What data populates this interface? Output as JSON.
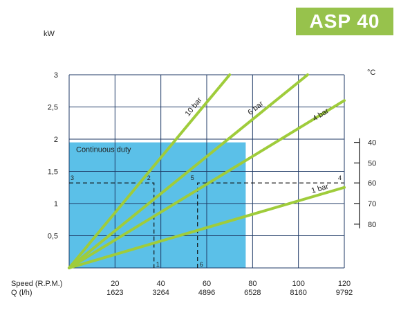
{
  "badge": "ASP 40",
  "chart_data": {
    "type": "line",
    "title": "",
    "ylabel": "kW",
    "ylim": [
      0,
      3
    ],
    "yticks": [
      "0,5",
      "1",
      "1,5",
      "2",
      "2,5",
      "3"
    ],
    "ytick_values": [
      0.5,
      1,
      1.5,
      2,
      2.5,
      3
    ],
    "xlim": [
      0,
      120
    ],
    "x_rows": [
      {
        "name": "Speed (R.P.M.)",
        "values": [
          "20",
          "40",
          "60",
          "80",
          "100",
          "120"
        ]
      },
      {
        "name": "Q (l/h)",
        "values": [
          "1623",
          "3264",
          "4896",
          "6528",
          "8160",
          "9792"
        ]
      }
    ],
    "x_tick_values": [
      20,
      40,
      60,
      80,
      100,
      120
    ],
    "series": [
      {
        "name": "10 bar",
        "x": [
          0,
          70
        ],
        "y": [
          0,
          3.0
        ],
        "label_at": [
          52,
          2.35
        ]
      },
      {
        "name": "6 bar",
        "x": [
          0,
          104
        ],
        "y": [
          0,
          3.0
        ],
        "label_at": [
          79,
          2.37
        ]
      },
      {
        "name": "4 bar",
        "x": [
          0,
          120
        ],
        "y": [
          0,
          2.6
        ],
        "label_at": [
          107,
          2.28
        ]
      },
      {
        "name": "1 bar",
        "x": [
          0,
          120
        ],
        "y": [
          0,
          1.25
        ],
        "label_at": [
          106,
          1.16
        ]
      }
    ],
    "shaded_region": {
      "label": "Continuous duty",
      "x": [
        0,
        77
      ],
      "y": [
        0,
        1.95
      ]
    },
    "secondary_axis": {
      "label": "°C",
      "ticks": [
        "40",
        "50",
        "60",
        "70",
        "80"
      ],
      "tick_values_kw": [
        1.95,
        1.63,
        1.32,
        1.0,
        0.68
      ]
    },
    "reference_lines": [
      {
        "points": [
          [
            0,
            1.32
          ],
          [
            37,
            1.32
          ],
          [
            37,
            0
          ]
        ],
        "start_label": "3",
        "corner_label": "2",
        "end_label": "1"
      },
      {
        "points": [
          [
            56,
            0
          ],
          [
            56,
            1.32
          ],
          [
            120,
            1.32
          ]
        ],
        "start_label": "6",
        "corner_label": "5",
        "end_label": "4"
      }
    ],
    "grid": true,
    "colors": {
      "series": "#9fcc3b",
      "shaded": "#5bc0e8",
      "grid": "#1f3a66",
      "badge": "#97c24c"
    }
  }
}
